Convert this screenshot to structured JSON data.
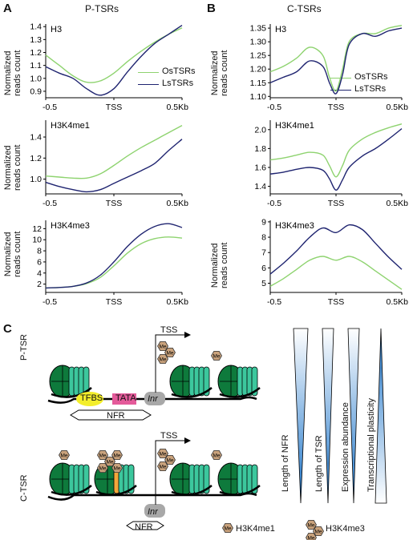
{
  "panels": {
    "a_letter": "A",
    "a_title": "P-TSRs",
    "b_letter": "B",
    "b_title": "C-TSRs",
    "c_letter": "C"
  },
  "colors": {
    "os": "#8ed36f",
    "ls": "#1f2470",
    "nucleosome_dark": "#0e7a3c",
    "nucleosome_light": "#3cc79d",
    "tfbs": "#f3ee2b",
    "tata": "#e45a9a",
    "inr": "#a8a8a8",
    "me": "#c9a27c",
    "tri_blue": "#1a73c9"
  },
  "legend": {
    "os": "OsTSRs",
    "ls": "LsTSRs"
  },
  "ylabel_line1": "Normalized",
  "ylabel_line2": "reads count",
  "chart_data": [
    {
      "type": "line",
      "panel": "A",
      "title": "H3",
      "xticks": [
        "-0.5",
        "TSS",
        "0.5Kb"
      ],
      "x": [
        -0.5,
        0.5
      ],
      "yticks": [
        "0.9",
        "1.0",
        "1.1",
        "1.2",
        "1.3",
        "1.4"
      ],
      "ylim": [
        0.85,
        1.42
      ],
      "series": [
        {
          "name": "OsTSRs",
          "x": [
            -0.5,
            -0.4,
            -0.3,
            -0.2,
            -0.1,
            0,
            0.1,
            0.2,
            0.3,
            0.4,
            0.5
          ],
          "values": [
            1.18,
            1.1,
            1.02,
            0.97,
            0.98,
            1.04,
            1.13,
            1.21,
            1.28,
            1.34,
            1.39
          ]
        },
        {
          "name": "LsTSRs",
          "x": [
            -0.5,
            -0.4,
            -0.3,
            -0.2,
            -0.1,
            0,
            0.1,
            0.2,
            0.3,
            0.4,
            0.5
          ],
          "values": [
            1.09,
            1.04,
            1.0,
            0.92,
            0.87,
            0.92,
            1.05,
            1.17,
            1.27,
            1.34,
            1.41
          ]
        }
      ]
    },
    {
      "type": "line",
      "panel": "A",
      "title": "H3K4me1",
      "xticks": [
        "-0.5",
        "TSS",
        "0.5Kb"
      ],
      "x": [
        -0.5,
        0.5
      ],
      "yticks": [
        "1.0",
        "1.2",
        "1.4"
      ],
      "ylim": [
        0.86,
        1.56
      ],
      "series": [
        {
          "name": "OsTSRs",
          "x": [
            -0.5,
            -0.4,
            -0.3,
            -0.2,
            -0.1,
            0,
            0.1,
            0.2,
            0.3,
            0.4,
            0.5
          ],
          "values": [
            1.03,
            1.02,
            1.01,
            1.01,
            1.05,
            1.13,
            1.22,
            1.3,
            1.37,
            1.44,
            1.51
          ]
        },
        {
          "name": "LsTSRs",
          "x": [
            -0.5,
            -0.4,
            -0.3,
            -0.2,
            -0.1,
            0,
            0.1,
            0.2,
            0.3,
            0.4,
            0.5
          ],
          "values": [
            0.97,
            0.93,
            0.9,
            0.88,
            0.9,
            0.96,
            1.02,
            1.08,
            1.15,
            1.27,
            1.38
          ]
        }
      ]
    },
    {
      "type": "line",
      "panel": "A",
      "title": "H3K4me3",
      "xticks": [
        "-0.5",
        "TSS",
        "0.5Kb"
      ],
      "x": [
        -0.5,
        0.5
      ],
      "yticks": [
        "2",
        "4",
        "6",
        "8",
        "10",
        "12"
      ],
      "ylim": [
        0.5,
        13.5
      ],
      "series": [
        {
          "name": "OsTSRs",
          "x": [
            -0.5,
            -0.4,
            -0.3,
            -0.2,
            -0.1,
            0,
            0.1,
            0.2,
            0.3,
            0.4,
            0.5
          ],
          "values": [
            1.3,
            1.4,
            1.6,
            2.1,
            3.2,
            5.3,
            7.6,
            9.3,
            10.2,
            10.5,
            10.3
          ]
        },
        {
          "name": "LsTSRs",
          "x": [
            -0.5,
            -0.4,
            -0.3,
            -0.2,
            -0.1,
            0,
            0.1,
            0.2,
            0.3,
            0.4,
            0.5
          ],
          "values": [
            1.3,
            1.4,
            1.6,
            2.2,
            3.6,
            6.0,
            8.8,
            11.0,
            12.4,
            12.9,
            12.2
          ]
        }
      ]
    },
    {
      "type": "line",
      "panel": "B",
      "title": "H3",
      "xticks": [
        "-0.5",
        "TSS",
        "0.5Kb"
      ],
      "x": [
        -0.5,
        0.5
      ],
      "yticks": [
        "1.10",
        "1.15",
        "1.20",
        "1.25",
        "1.30",
        "1.35"
      ],
      "ylim": [
        1.095,
        1.365
      ],
      "series": [
        {
          "name": "OsTSRs",
          "x": [
            -0.5,
            -0.4,
            -0.3,
            -0.2,
            -0.1,
            -0.05,
            0,
            0.05,
            0.1,
            0.2,
            0.3,
            0.4,
            0.5
          ],
          "values": [
            1.19,
            1.21,
            1.24,
            1.28,
            1.25,
            1.17,
            1.12,
            1.2,
            1.3,
            1.33,
            1.33,
            1.35,
            1.36
          ]
        },
        {
          "name": "LsTSRs",
          "x": [
            -0.5,
            -0.4,
            -0.3,
            -0.2,
            -0.1,
            -0.05,
            0,
            0.05,
            0.1,
            0.2,
            0.3,
            0.4,
            0.5
          ],
          "values": [
            1.15,
            1.17,
            1.19,
            1.23,
            1.21,
            1.15,
            1.11,
            1.18,
            1.29,
            1.33,
            1.32,
            1.34,
            1.35
          ]
        }
      ]
    },
    {
      "type": "line",
      "panel": "B",
      "title": "H3K4me1",
      "xticks": [
        "-0.5",
        "TSS",
        "0.5Kb"
      ],
      "x": [
        -0.5,
        0.5
      ],
      "yticks": [
        "1.4",
        "1.6",
        "1.8",
        "2.0"
      ],
      "ylim": [
        1.32,
        2.1
      ],
      "series": [
        {
          "name": "OsTSRs",
          "x": [
            -0.5,
            -0.4,
            -0.3,
            -0.2,
            -0.1,
            -0.05,
            0,
            0.05,
            0.1,
            0.2,
            0.3,
            0.4,
            0.5
          ],
          "values": [
            1.68,
            1.7,
            1.73,
            1.76,
            1.73,
            1.62,
            1.5,
            1.62,
            1.78,
            1.9,
            1.97,
            2.02,
            2.06
          ]
        },
        {
          "name": "LsTSRs",
          "x": [
            -0.5,
            -0.4,
            -0.3,
            -0.2,
            -0.1,
            -0.05,
            0,
            0.05,
            0.1,
            0.2,
            0.3,
            0.4,
            0.5
          ],
          "values": [
            1.53,
            1.55,
            1.58,
            1.6,
            1.57,
            1.48,
            1.36,
            1.47,
            1.6,
            1.72,
            1.8,
            1.9,
            2.01
          ]
        }
      ]
    },
    {
      "type": "line",
      "panel": "B",
      "title": "H3K4me3",
      "xticks": [
        "-0.5",
        "TSS",
        "0.5Kb"
      ],
      "x": [
        -0.5,
        0.5
      ],
      "yticks": [
        "5",
        "6",
        "7",
        "8",
        "9"
      ],
      "ylim": [
        4.4,
        9.1
      ],
      "series": [
        {
          "name": "OsTSRs",
          "x": [
            -0.5,
            -0.4,
            -0.3,
            -0.2,
            -0.1,
            0,
            0.1,
            0.2,
            0.3,
            0.4,
            0.5
          ],
          "values": [
            4.8,
            5.3,
            5.9,
            6.5,
            6.75,
            6.5,
            6.75,
            6.4,
            5.8,
            5.2,
            4.6
          ]
        },
        {
          "name": "LsTSRs",
          "x": [
            -0.5,
            -0.4,
            -0.3,
            -0.2,
            -0.1,
            0,
            0.1,
            0.2,
            0.3,
            0.4,
            0.5
          ],
          "values": [
            5.6,
            6.3,
            7.1,
            8.0,
            8.6,
            8.3,
            8.8,
            8.5,
            7.6,
            6.7,
            5.9
          ]
        }
      ]
    }
  ],
  "diagram": {
    "row1_label": "P-TSR",
    "row2_label": "C-TSR",
    "tss": "TSS",
    "tfbs": "TFBS",
    "tata": "TATA",
    "inr": "Inr",
    "nfr": "NFR",
    "me": "Me",
    "legend_me1": "H3K4me1",
    "legend_me3": "H3K4me3",
    "triangles": [
      "Length of NFR",
      "Length of TSR",
      "Expression abundance",
      "Transcriptional plasticity"
    ]
  }
}
